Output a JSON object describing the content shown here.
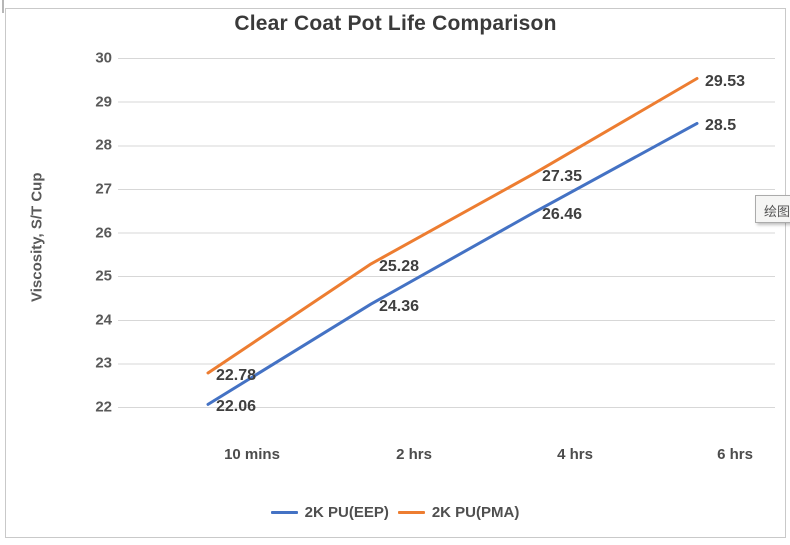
{
  "chart_data": {
    "type": "line",
    "title": "Clear Coat Pot Life Comparison",
    "ylabel": "Viscosity, S/T Cup",
    "xlabel": "",
    "categories": [
      "10 mins",
      "2 hrs",
      "4 hrs",
      "6 hrs"
    ],
    "series": [
      {
        "name": "2K PU(EEP)",
        "color": "#4472C4",
        "values": [
          22.06,
          24.36,
          26.46,
          28.5
        ],
        "labels": [
          "22.06",
          "24.36",
          "26.46",
          "28.5"
        ]
      },
      {
        "name": "2K PU(PMA)",
        "color": "#ED7D31",
        "values": [
          22.78,
          25.28,
          27.35,
          29.53
        ],
        "labels": [
          "22.78",
          "25.28",
          "27.35",
          "29.53"
        ]
      }
    ],
    "ylim": [
      22,
      30
    ],
    "y_ticks": [
      22,
      23,
      24,
      25,
      26,
      27,
      28,
      29,
      30
    ],
    "grid": "horizontal",
    "legend_position": "bottom"
  },
  "tooltip": {
    "label": "绘图"
  },
  "colors": {
    "gridline": "#d7d7d7",
    "frame_border": "#c9c9c9",
    "title_text": "#3a3a3a",
    "axis_text": "#595959",
    "data_label_text": "#3f3f3f",
    "background": "#ffffff"
  }
}
